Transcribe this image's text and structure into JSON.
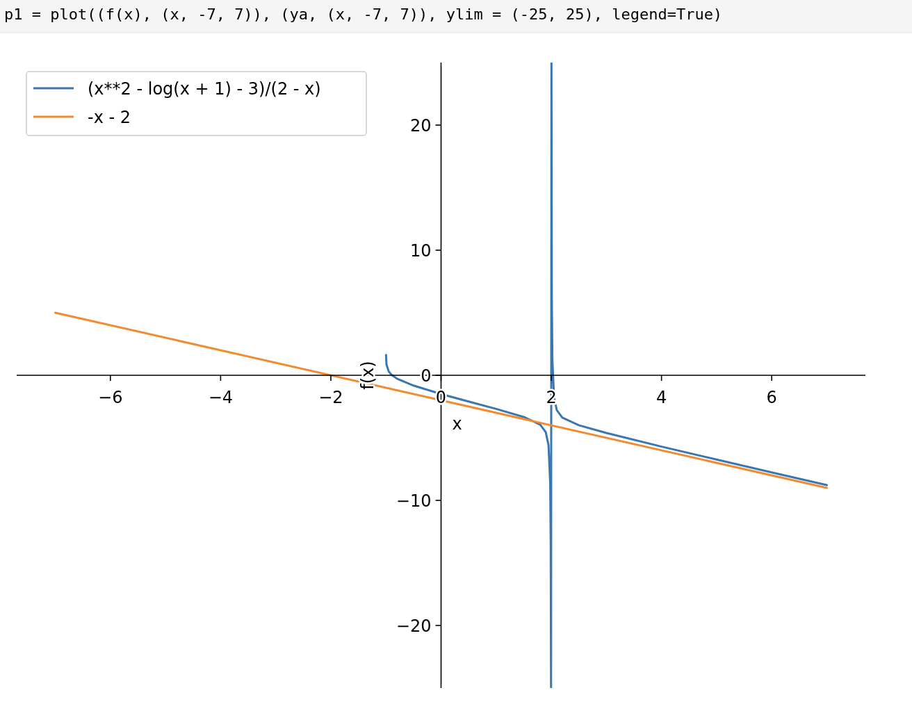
{
  "chart_data": {
    "type": "line",
    "xlabel": "x",
    "ylabel": "f(x)",
    "annotations": [
      "p1 = plot((f(x), (x, -7, 7)), (ya, (x, -7, 7)), ylim = (-25, 25), legend=True)"
    ],
    "xlim": [
      -7.7,
      7.7
    ],
    "ylim": [
      -25,
      25
    ],
    "xticks": [
      {
        "value": -6,
        "label": "−6"
      },
      {
        "value": -4,
        "label": "−4"
      },
      {
        "value": -2,
        "label": "−2"
      },
      0,
      2,
      4,
      6
    ],
    "yticks": [
      {
        "value": -20,
        "label": "−20"
      },
      {
        "value": -10,
        "label": "−10"
      },
      0,
      10,
      20
    ],
    "grid": false,
    "legend": "top left",
    "marker": "none",
    "line_style": "solid",
    "series": [
      {
        "name": "(x**2 - log(x + 1) - 3)/(2 - x)",
        "color": "#3a76b0",
        "x": [
          -0.999,
          -0.99,
          -0.95,
          -0.9,
          -0.8,
          -0.5,
          0,
          0.5,
          1,
          1.5,
          1.8,
          1.9,
          1.95,
          1.98,
          1.99,
          1.995,
          1.996,
          2.003,
          2.01,
          2.02,
          2.05,
          2.1,
          2.2,
          2.5,
          3,
          4,
          5,
          6,
          7
        ],
        "values": [
          1.63,
          0.87,
          0.31,
          0.04,
          -0.27,
          -0.82,
          -1.5,
          -2.1,
          -2.69,
          -3.33,
          -3.95,
          -4.55,
          -5.59,
          -8.58,
          -13.5,
          -23.4,
          -25,
          25,
          6.18,
          1.25,
          -1.75,
          -2.79,
          -3.38,
          -3.99,
          -4.61,
          -5.7,
          -6.74,
          -7.76,
          -8.78
        ]
      },
      {
        "name": "-x - 2",
        "color": "#f28b30",
        "x": [
          -7,
          7
        ],
        "values": [
          5,
          -9
        ]
      }
    ]
  }
}
